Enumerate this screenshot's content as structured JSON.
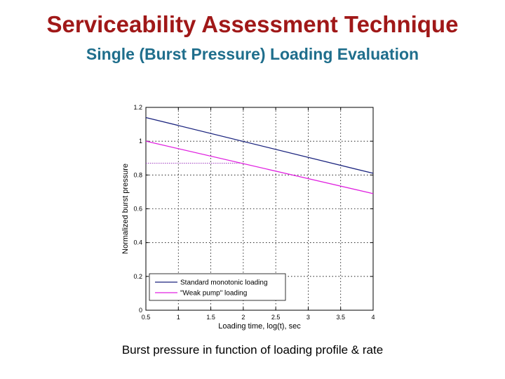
{
  "slide": {
    "title": "Serviceability Assessment Technique",
    "subtitle": "Single (Burst Pressure) Loading Evaluation",
    "caption": "Burst pressure in function of loading profile & rate",
    "colors": {
      "title": "#a01818",
      "subtitle": "#1f6e8c"
    }
  },
  "chart_data": {
    "type": "line",
    "xlabel": "Loading time, log(t), sec",
    "ylabel": "Normalized burst pressure",
    "xlim": [
      0.5,
      4
    ],
    "ylim": [
      0,
      1.2
    ],
    "xticks": [
      0.5,
      1,
      1.5,
      2,
      2.5,
      3,
      3.5,
      4
    ],
    "xtick_labels": [
      "0.5",
      "1",
      "1.5",
      "2",
      "2.5",
      "3",
      "3.5",
      "4"
    ],
    "yticks": [
      0,
      0.2,
      0.4,
      0.6,
      0.8,
      1,
      1.2
    ],
    "ytick_labels": [
      "0",
      "0.2",
      "0.4",
      "0.6",
      "0.8",
      "1",
      "1.2"
    ],
    "grid": true,
    "legend_position": "bottom-left",
    "series": [
      {
        "name": "Standard monotonic loading",
        "color": "#1a237e",
        "x": [
          0.5,
          4
        ],
        "y": [
          1.14,
          0.81
        ]
      },
      {
        "name": "\"Weak pump\" loading",
        "color": "#e020e0",
        "x": [
          0.5,
          4
        ],
        "y": [
          1.0,
          0.69
        ]
      }
    ],
    "reference_line": {
      "color": "#a040c0",
      "x": [
        0.5,
        2
      ],
      "y": 0.87
    }
  }
}
